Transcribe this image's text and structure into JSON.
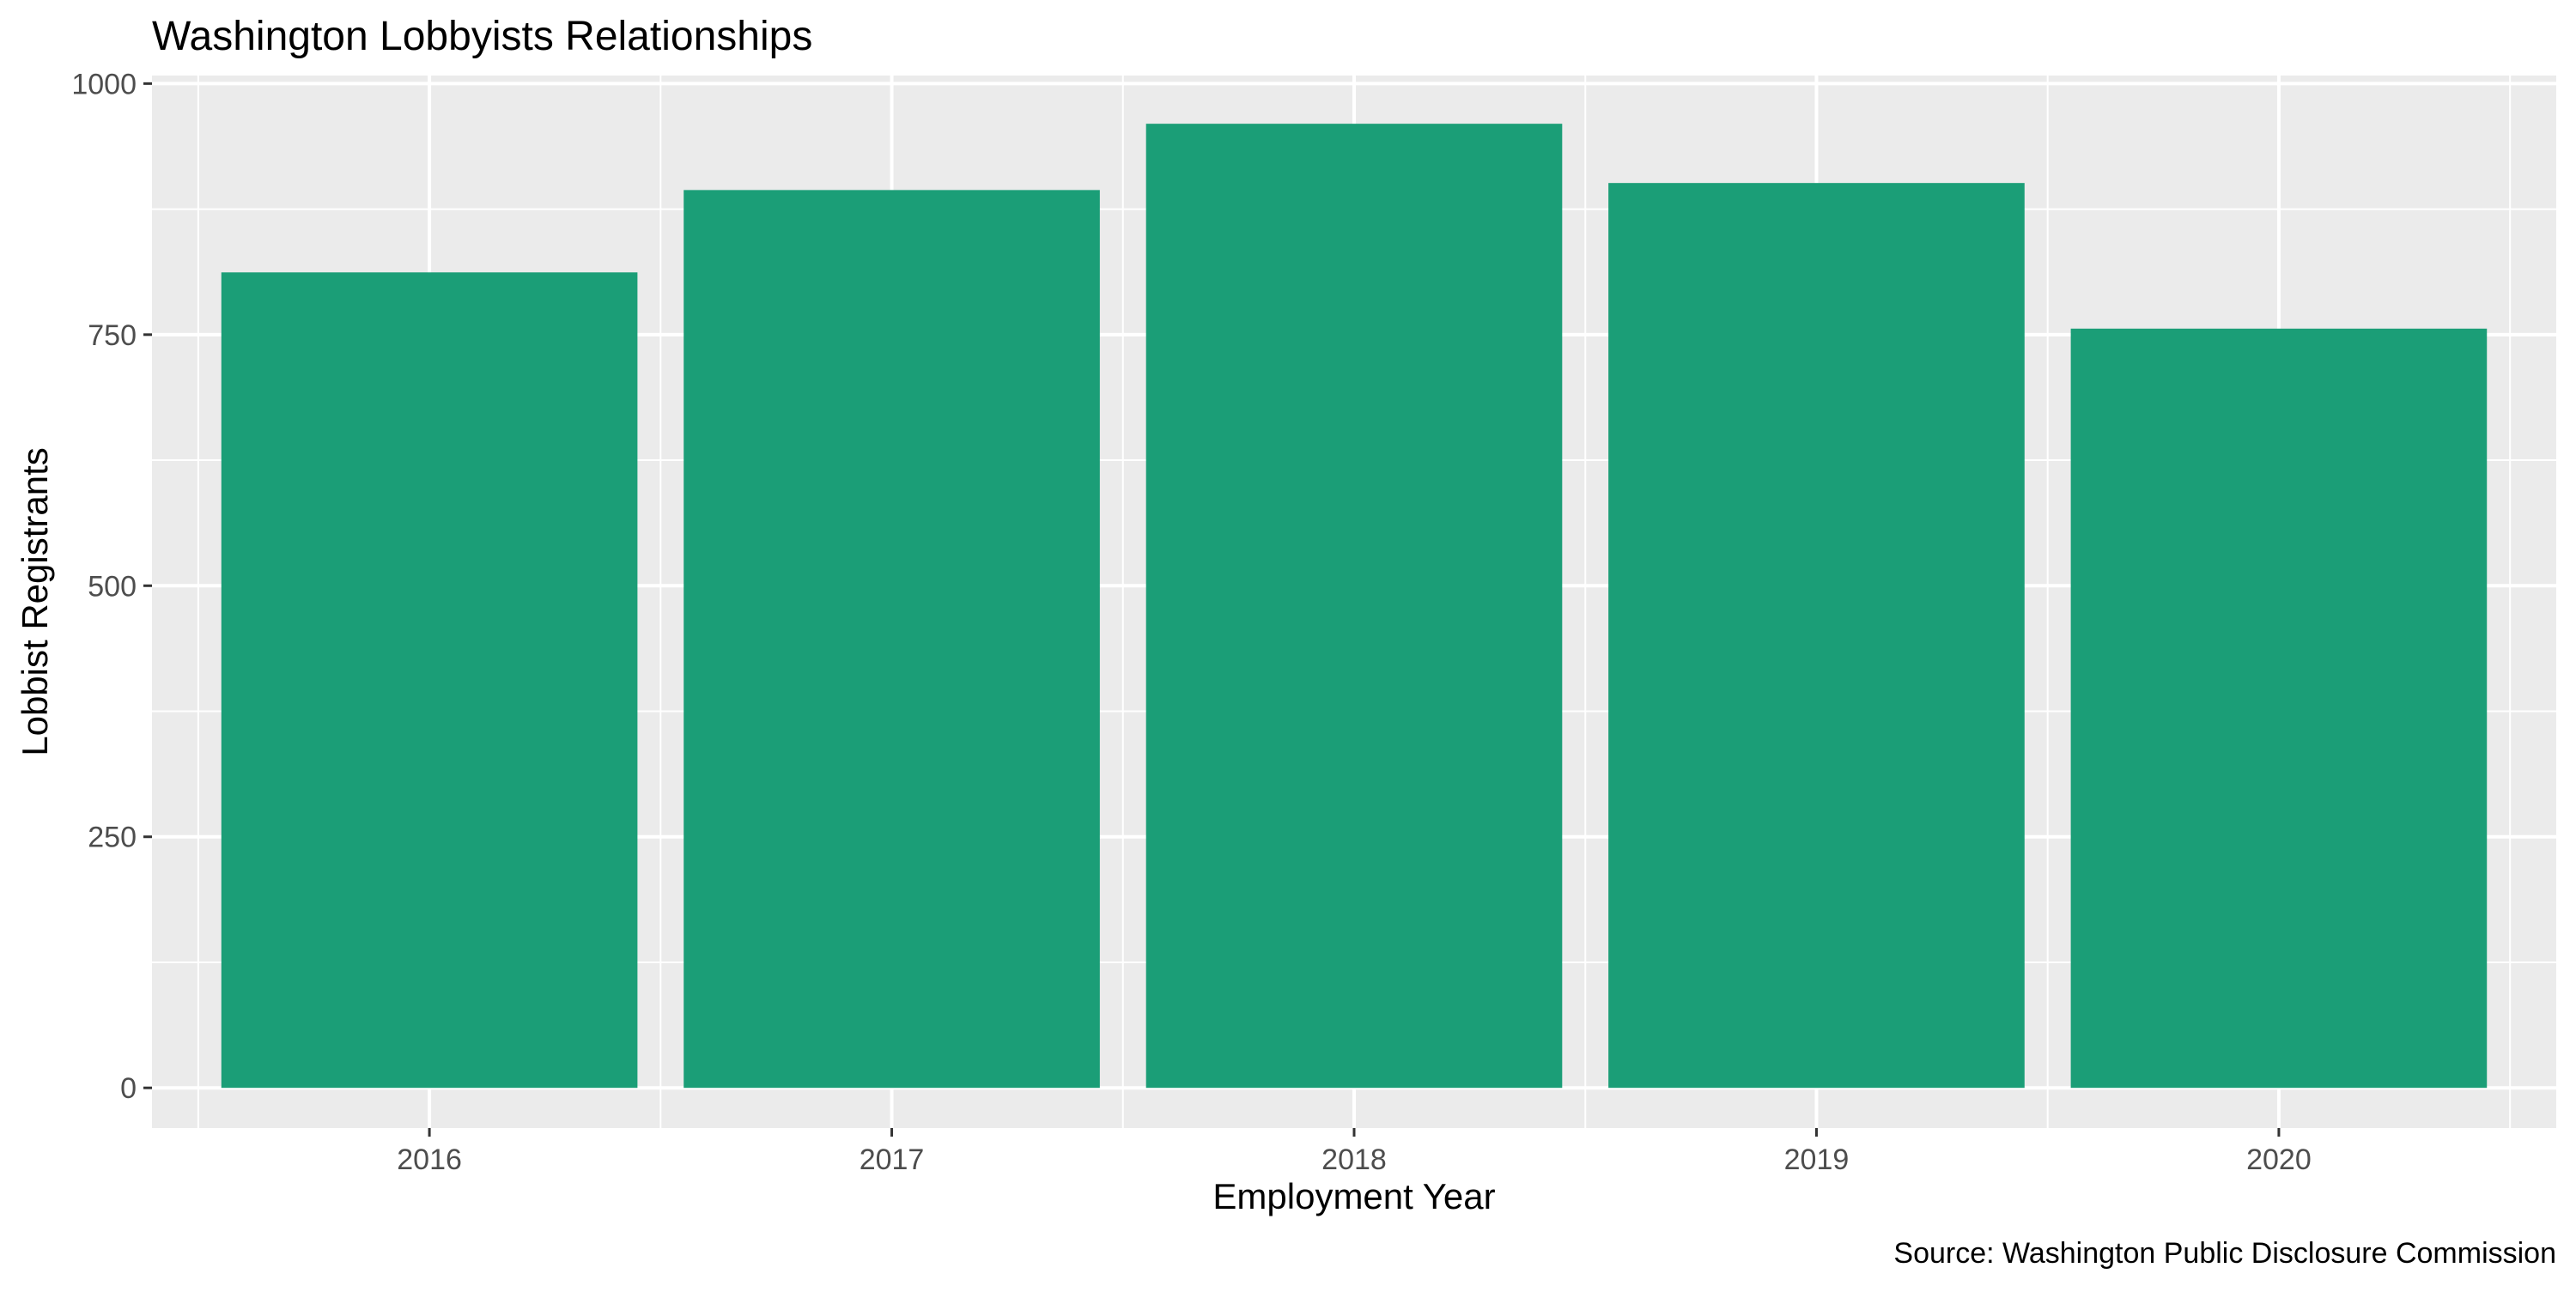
{
  "chart_data": {
    "type": "bar",
    "title": "Washington Lobbyists Relationships",
    "xlabel": "Employment Year",
    "ylabel": "Lobbist Registrants",
    "caption": "Source: Washington Public Disclosure Commission",
    "categories": [
      "2016",
      "2017",
      "2018",
      "2019",
      "2020"
    ],
    "values": [
      812,
      894,
      960,
      901,
      756
    ],
    "ylim": [
      -40,
      1008
    ],
    "yticks": [
      0,
      250,
      500,
      750,
      1000
    ],
    "grid": true,
    "legend": "none",
    "bar_color": "#1B9E77",
    "panel_background": "#EBEBEB",
    "grid_color": "#FFFFFF"
  }
}
